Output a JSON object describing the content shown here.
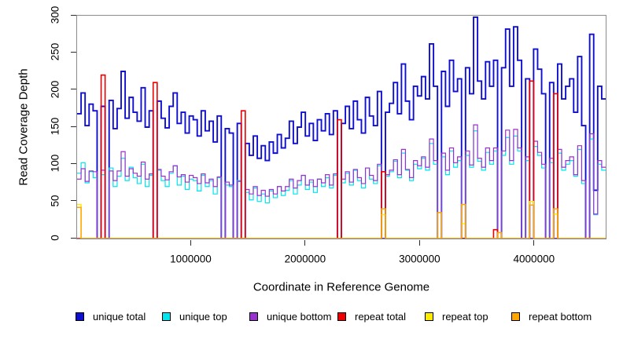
{
  "chart_data": {
    "type": "step-line",
    "title": "",
    "xlabel": "Coordinate in Reference Genome",
    "ylabel": "Read Coverage Depth",
    "ylim": [
      0,
      300
    ],
    "x_max": 4620000,
    "bin_size": 35000,
    "grid": false,
    "frame_color": "#8b8b8b",
    "y_ticks": [
      0,
      50,
      100,
      150,
      200,
      250,
      300
    ],
    "x_ticks": [
      {
        "label": "1000000",
        "value": 1000000
      },
      {
        "label": "2000000",
        "value": 2000000
      },
      {
        "label": "3000000",
        "value": 3000000
      },
      {
        "label": "4000000",
        "value": 4000000
      }
    ],
    "series": [
      {
        "name": "unique total",
        "key": "unique-total",
        "color": "#0f0fd0",
        "line_width": 1.9,
        "values": [
          168,
          196,
          152,
          181,
          172,
          0,
          178,
          0,
          186,
          148,
          175,
          225,
          162,
          190,
          170,
          158,
          203,
          150,
          172,
          0,
          185,
          162,
          149,
          178,
          196,
          155,
          170,
          142,
          165,
          160,
          138,
          172,
          145,
          158,
          130,
          165,
          0,
          148,
          142,
          0,
          155,
          0,
          128,
          112,
          138,
          108,
          125,
          105,
          130,
          115,
          140,
          122,
          135,
          158,
          128,
          150,
          170,
          138,
          155,
          132,
          160,
          145,
          168,
          140,
          172,
          0,
          155,
          178,
          148,
          185,
          160,
          142,
          190,
          165,
          152,
          198,
          0,
          170,
          182,
          210,
          168,
          235,
          185,
          160,
          205,
          192,
          218,
          188,
          262,
          205,
          0,
          225,
          178,
          240,
          198,
          215,
          0,
          230,
          195,
          298,
          212,
          188,
          238,
          205,
          240,
          0,
          230,
          282,
          205,
          285,
          240,
          0,
          215,
          0,
          255,
          228,
          195,
          0,
          210,
          0,
          235,
          188,
          205,
          215,
          170,
          245,
          152,
          0,
          275,
          65,
          205,
          188
        ]
      },
      {
        "name": "unique top",
        "key": "unique-top",
        "color": "#00e5ee",
        "line_width": 1.2,
        "values": [
          88,
          102,
          75,
          90,
          82,
          0,
          86,
          0,
          95,
          70,
          84,
          108,
          78,
          96,
          82,
          74,
          100,
          70,
          85,
          0,
          92,
          78,
          70,
          88,
          98,
          72,
          84,
          66,
          80,
          78,
          64,
          85,
          70,
          78,
          60,
          82,
          0,
          72,
          70,
          0,
          78,
          0,
          62,
          52,
          68,
          50,
          60,
          48,
          64,
          55,
          70,
          58,
          65,
          78,
          60,
          72,
          85,
          66,
          76,
          62,
          80,
          70,
          82,
          68,
          85,
          0,
          75,
          88,
          72,
          92,
          78,
          68,
          95,
          80,
          74,
          98,
          0,
          84,
          90,
          104,
          82,
          115,
          92,
          78,
          100,
          94,
          108,
          92,
          128,
          100,
          0,
          110,
          86,
          118,
          96,
          105,
          0,
          112,
          96,
          145,
          104,
          92,
          116,
          100,
          118,
          0,
          112,
          136,
          100,
          138,
          118,
          0,
          105,
          0,
          124,
          112,
          95,
          0,
          102,
          0,
          115,
          92,
          100,
          105,
          84,
          120,
          74,
          0,
          134,
          32,
          100,
          92
        ]
      },
      {
        "name": "unique bottom",
        "key": "unique-bottom",
        "color": "#9932cc",
        "line_width": 1.2,
        "values": [
          80,
          94,
          77,
          91,
          90,
          0,
          92,
          0,
          91,
          78,
          91,
          117,
          84,
          94,
          88,
          84,
          103,
          80,
          87,
          0,
          93,
          84,
          79,
          90,
          98,
          83,
          86,
          76,
          85,
          82,
          74,
          87,
          75,
          80,
          70,
          83,
          0,
          76,
          72,
          0,
          77,
          0,
          66,
          60,
          70,
          58,
          65,
          57,
          66,
          60,
          70,
          64,
          70,
          80,
          68,
          78,
          85,
          72,
          79,
          70,
          80,
          75,
          86,
          72,
          87,
          0,
          80,
          90,
          76,
          93,
          82,
          74,
          95,
          85,
          78,
          100,
          0,
          86,
          92,
          106,
          86,
          120,
          93,
          82,
          105,
          98,
          110,
          96,
          134,
          105,
          0,
          115,
          92,
          122,
          102,
          110,
          0,
          118,
          99,
          153,
          108,
          96,
          122,
          105,
          122,
          0,
          118,
          146,
          105,
          147,
          122,
          0,
          110,
          0,
          131,
          116,
          100,
          0,
          108,
          0,
          120,
          96,
          105,
          110,
          86,
          125,
          78,
          0,
          141,
          33,
          105,
          96
        ]
      },
      {
        "name": "repeat total",
        "key": "repeat-total",
        "color": "#ee0000",
        "line_width": 1.6,
        "values": [
          0,
          0,
          0,
          0,
          0,
          0,
          220,
          0,
          0,
          0,
          0,
          0,
          0,
          0,
          0,
          0,
          0,
          0,
          0,
          210,
          0,
          0,
          0,
          0,
          0,
          0,
          0,
          0,
          0,
          0,
          0,
          0,
          0,
          0,
          0,
          0,
          0,
          0,
          0,
          0,
          0,
          172,
          0,
          0,
          0,
          0,
          0,
          0,
          0,
          0,
          0,
          0,
          0,
          0,
          0,
          0,
          0,
          0,
          0,
          0,
          0,
          0,
          0,
          0,
          0,
          160,
          0,
          0,
          0,
          0,
          0,
          0,
          0,
          0,
          0,
          0,
          90,
          0,
          0,
          0,
          0,
          0,
          0,
          0,
          0,
          0,
          0,
          0,
          0,
          0,
          0,
          0,
          0,
          0,
          0,
          0,
          0,
          0,
          0,
          0,
          0,
          0,
          0,
          0,
          12,
          0,
          0,
          0,
          0,
          0,
          0,
          0,
          0,
          212,
          0,
          0,
          0,
          0,
          0,
          195,
          0,
          0,
          0,
          0,
          0,
          0,
          0,
          0,
          0,
          0,
          0,
          0
        ]
      },
      {
        "name": "repeat top",
        "key": "repeat-top",
        "color": "#ffeb00",
        "line_width": 1.4,
        "values": [
          46,
          0,
          0,
          0,
          0,
          0,
          0,
          0,
          0,
          0,
          0,
          0,
          0,
          0,
          0,
          0,
          0,
          0,
          0,
          0,
          0,
          0,
          0,
          0,
          0,
          0,
          0,
          0,
          0,
          0,
          0,
          0,
          0,
          0,
          0,
          0,
          0,
          0,
          0,
          0,
          0,
          0,
          0,
          0,
          0,
          0,
          0,
          0,
          0,
          0,
          0,
          0,
          0,
          0,
          0,
          0,
          0,
          0,
          0,
          0,
          0,
          0,
          0,
          0,
          0,
          0,
          0,
          0,
          0,
          0,
          0,
          0,
          0,
          0,
          0,
          0,
          32,
          0,
          0,
          0,
          0,
          0,
          0,
          0,
          0,
          0,
          0,
          0,
          0,
          0,
          0,
          0,
          0,
          0,
          0,
          0,
          20,
          0,
          0,
          0,
          0,
          0,
          0,
          0,
          0,
          0,
          0,
          0,
          0,
          0,
          0,
          0,
          0,
          50,
          0,
          0,
          0,
          0,
          0,
          33,
          0,
          0,
          0,
          0,
          0,
          0,
          0,
          0,
          0,
          0,
          0,
          0
        ]
      },
      {
        "name": "repeat bottom",
        "key": "repeat-bottom",
        "color": "#ffa500",
        "line_width": 1.5,
        "values": [
          42,
          0,
          0,
          0,
          0,
          0,
          0,
          0,
          0,
          0,
          0,
          0,
          0,
          0,
          0,
          0,
          0,
          0,
          0,
          0,
          0,
          0,
          0,
          0,
          0,
          0,
          0,
          0,
          0,
          0,
          0,
          0,
          0,
          0,
          0,
          0,
          0,
          0,
          0,
          0,
          0,
          0,
          0,
          0,
          0,
          0,
          0,
          0,
          0,
          0,
          0,
          0,
          0,
          0,
          0,
          0,
          0,
          0,
          0,
          0,
          0,
          0,
          0,
          0,
          0,
          0,
          0,
          0,
          0,
          0,
          0,
          0,
          0,
          0,
          0,
          0,
          40,
          0,
          0,
          0,
          0,
          0,
          0,
          0,
          0,
          0,
          0,
          0,
          0,
          0,
          35,
          0,
          0,
          0,
          0,
          0,
          46,
          0,
          0,
          0,
          0,
          0,
          0,
          0,
          0,
          8,
          0,
          0,
          0,
          0,
          0,
          0,
          0,
          45,
          0,
          0,
          0,
          0,
          0,
          40,
          0,
          0,
          0,
          0,
          0,
          0,
          0,
          0,
          0,
          0,
          0,
          0
        ]
      }
    ]
  },
  "legend": {
    "items": [
      {
        "label": "unique total",
        "key": "unique-total",
        "color": "#0f0fd0"
      },
      {
        "label": "unique top",
        "key": "unique-top",
        "color": "#00e5ee"
      },
      {
        "label": "unique bottom",
        "key": "unique-bottom",
        "color": "#9932cc"
      },
      {
        "label": "repeat total",
        "key": "repeat-total",
        "color": "#ee0000"
      },
      {
        "label": "repeat top",
        "key": "repeat-top",
        "color": "#ffeb00"
      },
      {
        "label": "repeat bottom",
        "key": "repeat-bottom",
        "color": "#ffa500"
      }
    ]
  }
}
